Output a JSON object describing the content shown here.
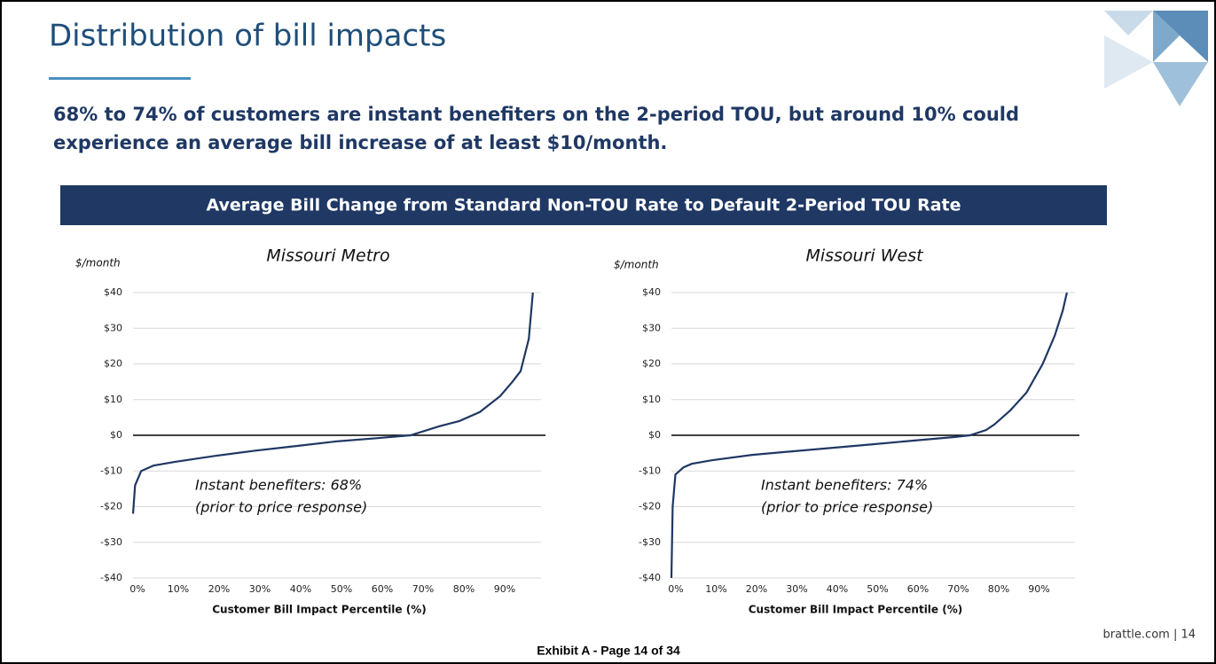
{
  "slide": {
    "title": "Distribution of bill impacts",
    "subtitle": [
      "68% to 74% of customers are instant benefiters on the 2-period TOU, but around 10% could",
      "experience an average bill increase of at least $10/month."
    ],
    "banner": "Average Bill Change from Standard Non-TOU Rate to Default 2-Period TOU Rate",
    "footer": "brattle.com | 14",
    "exhibit": "Exhibit A - Page 14 of 34"
  },
  "chart_data": [
    {
      "type": "line",
      "title": "Missouri Metro",
      "y_label": "$/month",
      "x_label": "Customer Bill Impact Percentile (%)",
      "color": "#1f3864",
      "x": [
        0,
        0.5,
        2,
        5,
        10,
        20,
        30,
        40,
        50,
        60,
        68,
        75,
        80,
        85,
        90,
        93,
        95,
        97,
        98
      ],
      "values": [
        -22,
        -14,
        -10,
        -8.5,
        -7.5,
        -5.8,
        -4.3,
        -3,
        -1.7,
        -0.8,
        0,
        2.5,
        4,
        6.5,
        11,
        15,
        18,
        27,
        40
      ],
      "annotations": [
        "Instant benefiters: 68%",
        "(prior to price response)"
      ],
      "xlim": [
        0,
        100
      ],
      "xticks": [
        {
          "value": 0,
          "label": "0%"
        },
        {
          "value": 10,
          "label": "10%"
        },
        {
          "value": 20,
          "label": "20%"
        },
        {
          "value": 30,
          "label": "30%"
        },
        {
          "value": 40,
          "label": "40%"
        },
        {
          "value": 50,
          "label": "50%"
        },
        {
          "value": 60,
          "label": "60%"
        },
        {
          "value": 70,
          "label": "70%"
        },
        {
          "value": 80,
          "label": "80%"
        },
        {
          "value": 90,
          "label": "90%"
        }
      ],
      "ylim": [
        -40,
        40
      ],
      "yticks": [
        {
          "value": 40,
          "label": "$40"
        },
        {
          "value": 30,
          "label": "$30"
        },
        {
          "value": 20,
          "label": "$20"
        },
        {
          "value": 10,
          "label": "$10"
        },
        {
          "value": 0,
          "label": "$0"
        },
        {
          "value": -10,
          "label": "-$10"
        },
        {
          "value": -20,
          "label": "-$20"
        },
        {
          "value": -30,
          "label": "-$30"
        },
        {
          "value": -40,
          "label": "-$40"
        }
      ],
      "grid": true
    },
    {
      "type": "line",
      "title": "Missouri West",
      "y_label": "$/month",
      "x_label": "Customer Bill Impact Percentile (%)",
      "color": "#1f3864",
      "x": [
        0,
        0.3,
        1,
        3,
        5,
        10,
        20,
        30,
        40,
        50,
        60,
        70,
        74,
        78,
        80,
        84,
        88,
        92,
        95,
        97,
        98
      ],
      "values": [
        -40,
        -20,
        -11,
        -9,
        -8,
        -7,
        -5.5,
        -4.5,
        -3.5,
        -2.5,
        -1.5,
        -0.5,
        0,
        1.5,
        3,
        7,
        12,
        20,
        28,
        35,
        40
      ],
      "annotations": [
        "Instant benefiters: 74%",
        "(prior to price response)"
      ],
      "xlim": [
        0,
        100
      ],
      "xticks": [
        {
          "value": 0,
          "label": "0%"
        },
        {
          "value": 10,
          "label": "10%"
        },
        {
          "value": 20,
          "label": "20%"
        },
        {
          "value": 30,
          "label": "30%"
        },
        {
          "value": 40,
          "label": "40%"
        },
        {
          "value": 50,
          "label": "50%"
        },
        {
          "value": 60,
          "label": "60%"
        },
        {
          "value": 70,
          "label": "70%"
        },
        {
          "value": 80,
          "label": "80%"
        },
        {
          "value": 90,
          "label": "90%"
        }
      ],
      "ylim": [
        -40,
        40
      ],
      "yticks": [
        {
          "value": 40,
          "label": "$40"
        },
        {
          "value": 30,
          "label": "$30"
        },
        {
          "value": 20,
          "label": "$20"
        },
        {
          "value": 10,
          "label": "$10"
        },
        {
          "value": 0,
          "label": "$0"
        },
        {
          "value": -10,
          "label": "-$10"
        },
        {
          "value": -20,
          "label": "-$20"
        },
        {
          "value": -30,
          "label": "-$30"
        },
        {
          "value": -40,
          "label": "-$40"
        }
      ],
      "grid": true
    }
  ]
}
